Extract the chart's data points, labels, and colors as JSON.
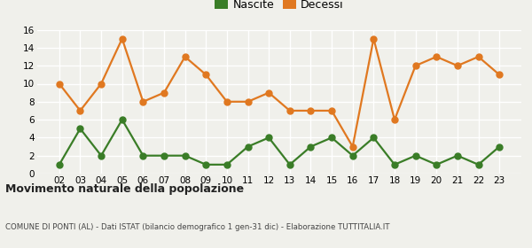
{
  "years": [
    "02",
    "03",
    "04",
    "05",
    "06",
    "07",
    "08",
    "09",
    "10",
    "11",
    "12",
    "13",
    "14",
    "15",
    "16",
    "17",
    "18",
    "19",
    "20",
    "21",
    "22",
    "23"
  ],
  "nascite": [
    1,
    5,
    2,
    6,
    2,
    2,
    2,
    1,
    1,
    3,
    4,
    1,
    3,
    4,
    2,
    4,
    1,
    2,
    1,
    2,
    1,
    3
  ],
  "decessi": [
    10,
    7,
    10,
    15,
    8,
    9,
    13,
    11,
    8,
    8,
    9,
    7,
    7,
    7,
    3,
    15,
    6,
    12,
    13,
    12,
    13,
    11
  ],
  "nascite_color": "#3a7d27",
  "decessi_color": "#e07820",
  "bg_color": "#f0f0eb",
  "grid_color": "#ffffff",
  "ylim": [
    0,
    16
  ],
  "yticks": [
    0,
    2,
    4,
    6,
    8,
    10,
    12,
    14,
    16
  ],
  "title": "Movimento naturale della popolazione",
  "subtitle": "COMUNE DI PONTI (AL) - Dati ISTAT (bilancio demografico 1 gen-31 dic) - Elaborazione TUTTITALIA.IT",
  "legend_nascite": "Nascite",
  "legend_decessi": "Decessi",
  "marker_size": 5,
  "line_width": 1.6
}
